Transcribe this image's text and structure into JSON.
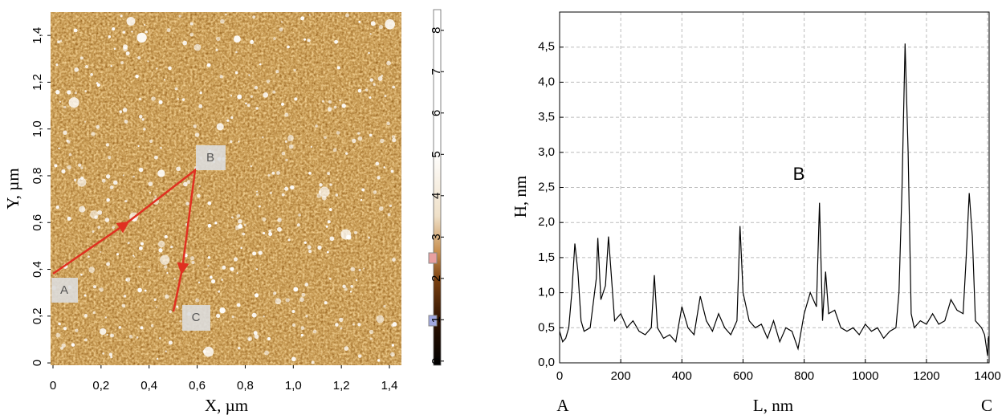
{
  "chart_data": [
    {
      "type": "image",
      "xlabel": "X, µm",
      "ylabel": "Y, µm",
      "xlim": [
        -0.01,
        1.45
      ],
      "ylim": [
        -0.01,
        1.5
      ],
      "xticks": [
        0,
        {
          "value": 0.2,
          "label": "0,2"
        },
        {
          "value": 0.4,
          "label": "0,4"
        },
        {
          "value": 0.6,
          "label": "0,6"
        },
        {
          "value": 0.8,
          "label": "0,8"
        },
        {
          "value": 1.0,
          "label": "1,0"
        },
        {
          "value": 1.2,
          "label": "1,2"
        },
        {
          "value": 1.4,
          "label": "1,4"
        }
      ],
      "yticks": [
        0,
        {
          "value": 0.2,
          "label": "0,2"
        },
        {
          "value": 0.4,
          "label": "0,4"
        },
        {
          "value": 0.6,
          "label": "0,6"
        },
        {
          "value": 0.8,
          "label": "0,8"
        },
        {
          "value": 1.0,
          "label": "1,0"
        },
        {
          "value": 1.2,
          "label": "1,2"
        },
        {
          "value": 1.4,
          "label": "1,4"
        }
      ],
      "clim": [
        -0.1,
        8.5
      ],
      "cticks": [
        0,
        1,
        2,
        3,
        4,
        5,
        6,
        7,
        8
      ],
      "annotations": [
        "A",
        "B",
        "C"
      ]
    },
    {
      "type": "line",
      "xlabel": "L, nm",
      "ylabel": "H, nm",
      "annotation": "B",
      "start_label": "A",
      "end_label": "C",
      "xlim": [
        0,
        1405
      ],
      "ylim": [
        0,
        5.0
      ],
      "xticks": [
        0,
        200,
        400,
        600,
        800,
        1000,
        1200,
        1400
      ],
      "yticks": [
        {
          "value": 0,
          "label": "0,0"
        },
        {
          "value": 0.5,
          "label": "0,5"
        },
        {
          "value": 1.0,
          "label": "1,0"
        },
        {
          "value": 1.5,
          "label": "1,5"
        },
        {
          "value": 2.0,
          "label": "2,0"
        },
        {
          "value": 2.5,
          "label": "2,5"
        },
        {
          "value": 3.0,
          "label": "3,0"
        },
        {
          "value": 3.5,
          "label": "3,5"
        },
        {
          "value": 4.0,
          "label": "4,0"
        },
        {
          "value": 4.5,
          "label": "4,5"
        }
      ],
      "grid": true,
      "color": "#000000",
      "x": [
        0,
        10,
        20,
        30,
        40,
        50,
        60,
        70,
        80,
        100,
        120,
        125,
        135,
        150,
        160,
        170,
        180,
        200,
        220,
        240,
        260,
        280,
        300,
        310,
        320,
        340,
        360,
        380,
        400,
        420,
        440,
        460,
        480,
        500,
        520,
        540,
        560,
        580,
        590,
        600,
        620,
        640,
        660,
        680,
        700,
        720,
        740,
        760,
        780,
        800,
        820,
        840,
        850,
        860,
        870,
        880,
        900,
        920,
        940,
        960,
        980,
        1000,
        1020,
        1040,
        1060,
        1080,
        1100,
        1110,
        1120,
        1130,
        1140,
        1150,
        1160,
        1180,
        1200,
        1220,
        1240,
        1260,
        1280,
        1300,
        1320,
        1330,
        1340,
        1350,
        1360,
        1380,
        1390,
        1400,
        1403
      ],
      "values": [
        0.45,
        0.3,
        0.35,
        0.5,
        1.0,
        1.7,
        1.3,
        0.6,
        0.45,
        0.5,
        1.2,
        1.78,
        0.9,
        1.1,
        1.8,
        1.2,
        0.6,
        0.7,
        0.5,
        0.6,
        0.45,
        0.4,
        0.5,
        1.25,
        0.5,
        0.35,
        0.4,
        0.3,
        0.8,
        0.5,
        0.4,
        0.95,
        0.6,
        0.45,
        0.7,
        0.5,
        0.4,
        0.6,
        1.95,
        1.0,
        0.6,
        0.5,
        0.55,
        0.35,
        0.6,
        0.3,
        0.5,
        0.45,
        0.2,
        0.7,
        1.0,
        0.8,
        2.28,
        0.6,
        1.3,
        0.7,
        0.75,
        0.5,
        0.45,
        0.5,
        0.4,
        0.55,
        0.45,
        0.5,
        0.35,
        0.45,
        0.5,
        1.0,
        2.5,
        4.55,
        3.0,
        0.7,
        0.5,
        0.6,
        0.55,
        0.7,
        0.55,
        0.6,
        0.9,
        0.75,
        0.7,
        1.5,
        2.42,
        1.8,
        0.6,
        0.5,
        0.4,
        0.1,
        0.38
      ]
    }
  ]
}
